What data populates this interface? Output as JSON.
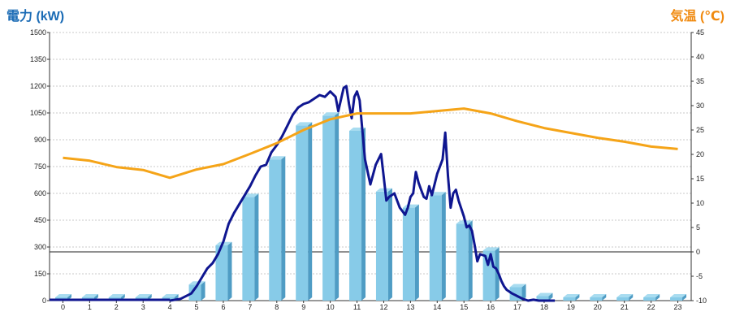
{
  "chart_data": {
    "type": "bar",
    "left_axis_title": "電力 (kW)",
    "right_axis_title": "気温 (℃)",
    "x_ticks": [
      "0",
      "1",
      "2",
      "3",
      "4",
      "5",
      "6",
      "7",
      "8",
      "9",
      "10",
      "11",
      "12",
      "13",
      "14",
      "15",
      "16",
      "17",
      "18",
      "19",
      "20",
      "21",
      "22",
      "23"
    ],
    "y_left": {
      "min": 0,
      "max": 1500,
      "ticks": [
        "0",
        "150",
        "300",
        "450",
        "600",
        "750",
        "900",
        "1050",
        "1200",
        "1350",
        "1500"
      ]
    },
    "y_right": {
      "min": -10,
      "max": 45,
      "ticks": [
        "-10",
        "-5",
        "0",
        "5",
        "10",
        "15",
        "20",
        "25",
        "30",
        "35",
        "40",
        "45"
      ]
    },
    "grid": true,
    "colors": {
      "bars": "#87cbe8",
      "power_line": "#0f1690",
      "temp_line": "#f5a418",
      "left_title": "#1a6bb5",
      "right_title": "#f08a10"
    },
    "series": [
      {
        "kind": "bar",
        "axis": "left",
        "x": [
          0,
          1,
          2,
          3,
          4,
          5,
          6,
          7,
          8,
          9,
          10,
          11,
          12,
          13,
          14,
          15,
          16,
          17,
          18,
          19,
          20,
          21,
          22,
          23
        ],
        "values": [
          0,
          0,
          0,
          0,
          0,
          90,
          310,
          580,
          790,
          980,
          1035,
          950,
          610,
          520,
          590,
          430,
          280,
          75,
          25,
          0,
          0,
          0,
          0,
          0
        ]
      },
      {
        "kind": "line",
        "axis": "left",
        "x": [
          4.0,
          4.4,
          4.8,
          5.0,
          5.2,
          5.4,
          5.6,
          5.8,
          6.0,
          6.2,
          6.4,
          6.6,
          6.8,
          7.0,
          7.2,
          7.4,
          7.6,
          7.8,
          8.0,
          8.2,
          8.4,
          8.6,
          8.8,
          9.0,
          9.2,
          9.4,
          9.6,
          9.8,
          10.0,
          10.2,
          10.3,
          10.5,
          10.6,
          10.7,
          10.8,
          10.9,
          11.0,
          11.1,
          11.3,
          11.5,
          11.7,
          11.9,
          12.0,
          12.1,
          12.2,
          12.4,
          12.6,
          12.8,
          12.9,
          13.0,
          13.1,
          13.2,
          13.3,
          13.4,
          13.5,
          13.6,
          13.7,
          13.8,
          14.0,
          14.2,
          14.3,
          14.4,
          14.5,
          14.6,
          14.7,
          14.8,
          15.0,
          15.1,
          15.2,
          15.3,
          15.4,
          15.5,
          15.6,
          15.8,
          15.9,
          16.0,
          16.1,
          16.2,
          16.3,
          16.4,
          16.5,
          16.6,
          16.8,
          17.0,
          17.2,
          17.4,
          17.6,
          17.8,
          18.0,
          18.2,
          18.4
        ],
        "values": [
          0,
          10,
          40,
          80,
          130,
          180,
          210,
          260,
          330,
          430,
          490,
          540,
          590,
          640,
          700,
          750,
          760,
          830,
          870,
          920,
          980,
          1040,
          1080,
          1100,
          1110,
          1130,
          1150,
          1140,
          1170,
          1140,
          1060,
          1190,
          1200,
          1100,
          1020,
          1140,
          1170,
          1120,
          790,
          650,
          760,
          820,
          690,
          560,
          580,
          600,
          520,
          480,
          520,
          580,
          600,
          720,
          660,
          620,
          580,
          570,
          640,
          590,
          710,
          790,
          940,
          700,
          520,
          600,
          620,
          560,
          470,
          410,
          420,
          390,
          310,
          220,
          260,
          250,
          200,
          260,
          190,
          180,
          150,
          110,
          80,
          60,
          40,
          25,
          10,
          0,
          5,
          0,
          0,
          0,
          0
        ]
      },
      {
        "kind": "line",
        "axis": "right",
        "x": [
          0,
          1,
          2,
          3,
          4,
          5,
          6,
          7,
          8,
          9,
          10,
          11,
          12,
          13,
          14,
          15,
          16,
          17,
          18,
          19,
          20,
          21,
          22,
          23
        ],
        "values": [
          19.3,
          18.7,
          17.4,
          16.8,
          15.2,
          16.9,
          18.0,
          20.1,
          22.3,
          25.0,
          27.2,
          28.4,
          28.4,
          28.4,
          28.9,
          29.4,
          28.4,
          26.8,
          25.4,
          24.4,
          23.4,
          22.6,
          21.6,
          21.1
        ]
      }
    ]
  }
}
